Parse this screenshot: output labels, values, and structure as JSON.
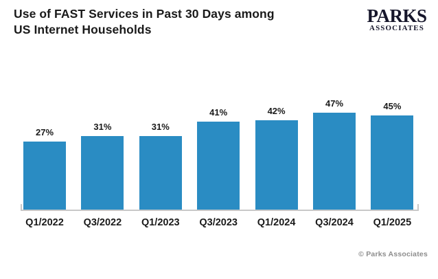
{
  "header": {
    "title_line1": "Use of FAST Services in Past 30 Days among",
    "title_line2": "US Internet Households",
    "logo": {
      "primary": "PARKS",
      "secondary": "ASSOCIATES"
    }
  },
  "footer": {
    "copyright": "© Parks Associates"
  },
  "chart_data": {
    "type": "bar",
    "title": "Use of FAST Services in Past 30 Days among US Internet Households",
    "categories": [
      "Q1/2022",
      "Q3/2022",
      "Q1/2023",
      "Q3/2023",
      "Q1/2024",
      "Q3/2024",
      "Q1/2025"
    ],
    "values": [
      27,
      31,
      31,
      41,
      42,
      47,
      45
    ],
    "data_labels": [
      "27%",
      "31%",
      "31%",
      "41%",
      "42%",
      "47%",
      "45%"
    ],
    "xlabel": "",
    "ylabel": "",
    "unit": "%",
    "grid": false,
    "legend": false,
    "bar_color": "#2a8cc3",
    "axis_color": "#c8c8c8"
  }
}
